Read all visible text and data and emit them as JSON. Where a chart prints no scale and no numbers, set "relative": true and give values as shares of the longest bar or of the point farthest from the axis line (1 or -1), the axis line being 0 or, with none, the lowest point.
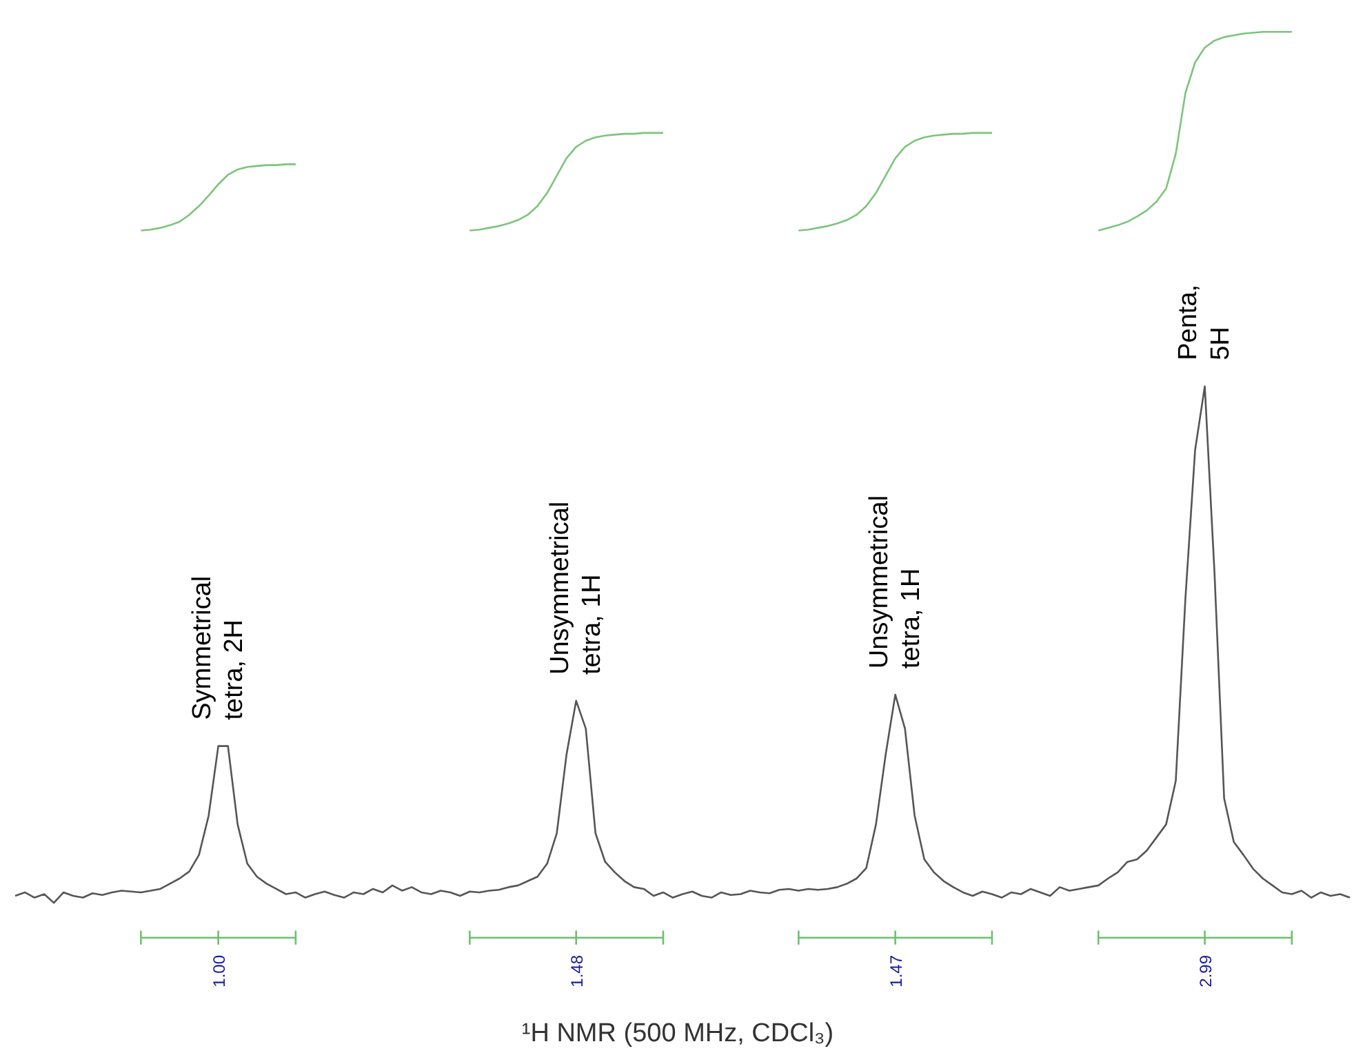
{
  "chart_data": {
    "type": "line",
    "relative": true,
    "grid": false,
    "categories": [
      null,
      null,
      null,
      null,
      null,
      null,
      null,
      null,
      null,
      null,
      null,
      null,
      null,
      null,
      null,
      null,
      null,
      null,
      null,
      null,
      null,
      null,
      null,
      null,
      null,
      null,
      null,
      null,
      null,
      null,
      null,
      null,
      null,
      null,
      null,
      null,
      null,
      null,
      null,
      null,
      null,
      null,
      null,
      null,
      null,
      null,
      null,
      null,
      null,
      null,
      null,
      null,
      null,
      null,
      null,
      null,
      null,
      null,
      null,
      null,
      null,
      null,
      null,
      null,
      null,
      null,
      null,
      null,
      null,
      null,
      null,
      null,
      null,
      null,
      null,
      null,
      null,
      null,
      null,
      null,
      null,
      null,
      null,
      null,
      null,
      null,
      null,
      null,
      null,
      null,
      null,
      null,
      null,
      null,
      null,
      null,
      null,
      null,
      null,
      null,
      null,
      null,
      null,
      null,
      null,
      null,
      null,
      null,
      null,
      null,
      null,
      null,
      null,
      null,
      null,
      null,
      null,
      null,
      null,
      null,
      null,
      null,
      null,
      null,
      null,
      null,
      null,
      null,
      null,
      null,
      null,
      null,
      null,
      null,
      null,
      null,
      null,
      null,
      null
    ],
    "series": [
      {
        "color": "#555555",
        "values": [
          0.008,
          0.012,
          0.006,
          0.01,
          0.0,
          0.012,
          0.008,
          0.006,
          0.011,
          0.009,
          0.012,
          0.014,
          0.013,
          0.012,
          0.014,
          0.016,
          0.022,
          0.028,
          0.036,
          0.055,
          0.1,
          0.18,
          0.18,
          0.09,
          0.045,
          0.03,
          0.022,
          0.016,
          0.01,
          0.012,
          0.006,
          0.01,
          0.013,
          0.009,
          0.006,
          0.012,
          0.01,
          0.016,
          0.012,
          0.02,
          0.014,
          0.018,
          0.012,
          0.01,
          0.014,
          0.012,
          0.008,
          0.013,
          0.012,
          0.014,
          0.015,
          0.018,
          0.02,
          0.025,
          0.03,
          0.045,
          0.08,
          0.17,
          0.232,
          0.2,
          0.08,
          0.047,
          0.035,
          0.025,
          0.018,
          0.016,
          0.008,
          0.012,
          0.006,
          0.01,
          0.013,
          0.008,
          0.006,
          0.012,
          0.009,
          0.01,
          0.014,
          0.012,
          0.011,
          0.015,
          0.016,
          0.014,
          0.016,
          0.015,
          0.016,
          0.018,
          0.022,
          0.028,
          0.04,
          0.09,
          0.17,
          0.239,
          0.2,
          0.1,
          0.05,
          0.035,
          0.025,
          0.018,
          0.012,
          0.008,
          0.013,
          0.01,
          0.006,
          0.012,
          0.01,
          0.016,
          0.012,
          0.008,
          0.018,
          0.014,
          0.016,
          0.018,
          0.02,
          0.028,
          0.035,
          0.047,
          0.05,
          0.06,
          0.075,
          0.09,
          0.14,
          0.35,
          0.52,
          0.593,
          0.38,
          0.12,
          0.07,
          0.055,
          0.039,
          0.028,
          0.02,
          0.012,
          0.01,
          0.014,
          0.006,
          0.012,
          0.008,
          0.01,
          0.006
        ]
      },
      {
        "color": "#7cc47c",
        "values": [
          null,
          null,
          null,
          null,
          null,
          null,
          null,
          null,
          null,
          null,
          null,
          null,
          null,
          0.772,
          0.773,
          0.775,
          0.778,
          0.782,
          0.79,
          0.8,
          0.812,
          0.825,
          0.836,
          0.842,
          0.845,
          0.846,
          0.847,
          0.847,
          0.848,
          0.848,
          null,
          null,
          null,
          null,
          null,
          null,
          null,
          null,
          null,
          null,
          null,
          null,
          null,
          null,
          null,
          null,
          null,
          null,
          null,
          null,
          null,
          null,
          null,
          null,
          null,
          null,
          null,
          null,
          null,
          null,
          null,
          null,
          null,
          null,
          null,
          null,
          null,
          null,
          null,
          null,
          null,
          null,
          null,
          null,
          null,
          null,
          null,
          null,
          null,
          null,
          null,
          null,
          null,
          null,
          null,
          null,
          null,
          null,
          null,
          null,
          null,
          null,
          null,
          null,
          null,
          null,
          null,
          null,
          null,
          null,
          null,
          null,
          null,
          null,
          null,
          null,
          null,
          null,
          null,
          null,
          null,
          null,
          null,
          null,
          null,
          null,
          null,
          null,
          null,
          null,
          null,
          null,
          null,
          null,
          null,
          null,
          null,
          null,
          null,
          null,
          null,
          null,
          null,
          null,
          null,
          null,
          null,
          null,
          null
        ]
      },
      {
        "color": "#7cc47c",
        "values": [
          null,
          null,
          null,
          null,
          null,
          null,
          null,
          null,
          null,
          null,
          null,
          null,
          null,
          null,
          null,
          null,
          null,
          null,
          null,
          null,
          null,
          null,
          null,
          null,
          null,
          null,
          null,
          null,
          null,
          null,
          null,
          null,
          null,
          null,
          null,
          null,
          null,
          null,
          null,
          null,
          null,
          null,
          null,
          null,
          null,
          null,
          null,
          0.772,
          0.773,
          0.775,
          0.777,
          0.78,
          0.784,
          0.79,
          0.8,
          0.815,
          0.835,
          0.855,
          0.868,
          0.875,
          0.879,
          0.881,
          0.882,
          0.883,
          0.883,
          0.884,
          0.884,
          0.884,
          null,
          null,
          null,
          null,
          null,
          null,
          null,
          null,
          null,
          null,
          null,
          null,
          null,
          null,
          null,
          null,
          null,
          null,
          null,
          null,
          null,
          null,
          null,
          null,
          null,
          null,
          null,
          null,
          null,
          null,
          null,
          null,
          null,
          null,
          null,
          null,
          null,
          null,
          null,
          null,
          null,
          null,
          null,
          null,
          null,
          null,
          null,
          null,
          null,
          null,
          null,
          null,
          null,
          null,
          null,
          null,
          null,
          null,
          null,
          null,
          null,
          null,
          null,
          null,
          null,
          null,
          null,
          null,
          null,
          null,
          null
        ]
      },
      {
        "color": "#7cc47c",
        "values": [
          null,
          null,
          null,
          null,
          null,
          null,
          null,
          null,
          null,
          null,
          null,
          null,
          null,
          null,
          null,
          null,
          null,
          null,
          null,
          null,
          null,
          null,
          null,
          null,
          null,
          null,
          null,
          null,
          null,
          null,
          null,
          null,
          null,
          null,
          null,
          null,
          null,
          null,
          null,
          null,
          null,
          null,
          null,
          null,
          null,
          null,
          null,
          null,
          null,
          null,
          null,
          null,
          null,
          null,
          null,
          null,
          null,
          null,
          null,
          null,
          null,
          null,
          null,
          null,
          null,
          null,
          null,
          null,
          null,
          null,
          null,
          null,
          null,
          null,
          null,
          null,
          null,
          null,
          null,
          null,
          null,
          0.772,
          0.773,
          0.775,
          0.777,
          0.78,
          0.784,
          0.79,
          0.8,
          0.815,
          0.835,
          0.855,
          0.868,
          0.875,
          0.879,
          0.881,
          0.882,
          0.883,
          0.883,
          0.884,
          0.884,
          0.884,
          null,
          null,
          null,
          null,
          null,
          null,
          null,
          null,
          null,
          null,
          null,
          null,
          null,
          null,
          null,
          null,
          null,
          null,
          null,
          null,
          null,
          null,
          null,
          null,
          null,
          null,
          null,
          null,
          null,
          null,
          null,
          null,
          null,
          null,
          null,
          null,
          null
        ]
      },
      {
        "color": "#7cc47c",
        "values": [
          null,
          null,
          null,
          null,
          null,
          null,
          null,
          null,
          null,
          null,
          null,
          null,
          null,
          null,
          null,
          null,
          null,
          null,
          null,
          null,
          null,
          null,
          null,
          null,
          null,
          null,
          null,
          null,
          null,
          null,
          null,
          null,
          null,
          null,
          null,
          null,
          null,
          null,
          null,
          null,
          null,
          null,
          null,
          null,
          null,
          null,
          null,
          null,
          null,
          null,
          null,
          null,
          null,
          null,
          null,
          null,
          null,
          null,
          null,
          null,
          null,
          null,
          null,
          null,
          null,
          null,
          null,
          null,
          null,
          null,
          null,
          null,
          null,
          null,
          null,
          null,
          null,
          null,
          null,
          null,
          null,
          null,
          null,
          null,
          null,
          null,
          null,
          null,
          null,
          null,
          null,
          null,
          null,
          null,
          null,
          null,
          null,
          null,
          null,
          null,
          null,
          null,
          null,
          null,
          null,
          null,
          null,
          null,
          null,
          null,
          null,
          null,
          0.772,
          0.775,
          0.778,
          0.782,
          0.788,
          0.795,
          0.805,
          0.82,
          0.86,
          0.93,
          0.965,
          0.982,
          0.99,
          0.994,
          0.996,
          0.998,
          0.999,
          1.0,
          1.0,
          1.0,
          1.0,
          null,
          null,
          null,
          null,
          null,
          null
        ]
      }
    ],
    "annotations": [
      "Symmetrical tetra, 2H",
      "Unsymmetrical tetra, 1H",
      "Unsymmetrical tetra, 1H",
      "Penta, 5H",
      "1.00",
      "1.48",
      "1.47",
      "2.99",
      "¹H NMR (500 MHz, CDCl₃)"
    ]
  }
}
